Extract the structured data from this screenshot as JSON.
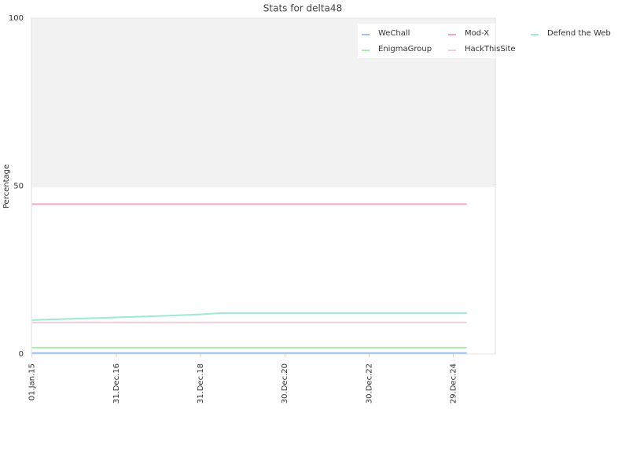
{
  "chart_data": {
    "type": "line",
    "title": "Stats for delta48",
    "y_label": "Percentage",
    "x": [
      "2015-01-01",
      "2016-01-01",
      "2017-01-01",
      "2018-01-01",
      "2019-01-01",
      "2019-07-01",
      "2020-01-01",
      "2021-01-01",
      "2022-01-01",
      "2023-01-01",
      "2024-01-01",
      "2025-04-25"
    ],
    "series": [
      {
        "name": "WeChall",
        "color": "#9ec4ec",
        "values": [
          0.3,
          0.3,
          0.3,
          0.3,
          0.3,
          0.3,
          0.3,
          0.3,
          0.3,
          0.3,
          0.3,
          0.3
        ]
      },
      {
        "name": "Mod-X",
        "color": "#f4a6bd",
        "values": [
          44.6,
          44.6,
          44.6,
          44.6,
          44.6,
          44.6,
          44.6,
          44.6,
          44.6,
          44.6,
          44.6,
          44.6
        ]
      },
      {
        "name": "Defend the Web",
        "color": "#9fe8d4",
        "values": [
          10.1,
          10.5,
          10.9,
          11.3,
          11.8,
          12.2,
          12.2,
          12.2,
          12.2,
          12.2,
          12.2,
          12.2
        ]
      },
      {
        "name": "EnigmaGroup",
        "color": "#a8eea8",
        "values": [
          1.9,
          1.9,
          1.9,
          1.9,
          1.9,
          1.9,
          1.9,
          1.9,
          1.9,
          1.9,
          1.9,
          1.9
        ]
      },
      {
        "name": "HackThisSite",
        "color": "#f4ccd4",
        "values": [
          9.4,
          9.4,
          9.4,
          9.4,
          9.4,
          9.4,
          9.4,
          9.4,
          9.4,
          9.4,
          9.4,
          9.4
        ]
      }
    ],
    "xlim": [
      "2014-12-27",
      "2025-12-28"
    ],
    "xticks": [
      {
        "value": "2015-01-01",
        "label": "01.Jan.15"
      },
      {
        "value": "2016-12-31",
        "label": "31.Dec.16"
      },
      {
        "value": "2018-12-31",
        "label": "31.Dec.18"
      },
      {
        "value": "2020-12-30",
        "label": "30.Dec.20"
      },
      {
        "value": "2022-12-30",
        "label": "30.Dec.22"
      },
      {
        "value": "2024-12-29",
        "label": "29.Dec.24"
      }
    ],
    "ylim": [
      0,
      100
    ],
    "yticks": [
      0,
      50,
      100
    ],
    "plot_band": [
      50,
      100
    ],
    "grid": true,
    "legend": "top-right"
  }
}
